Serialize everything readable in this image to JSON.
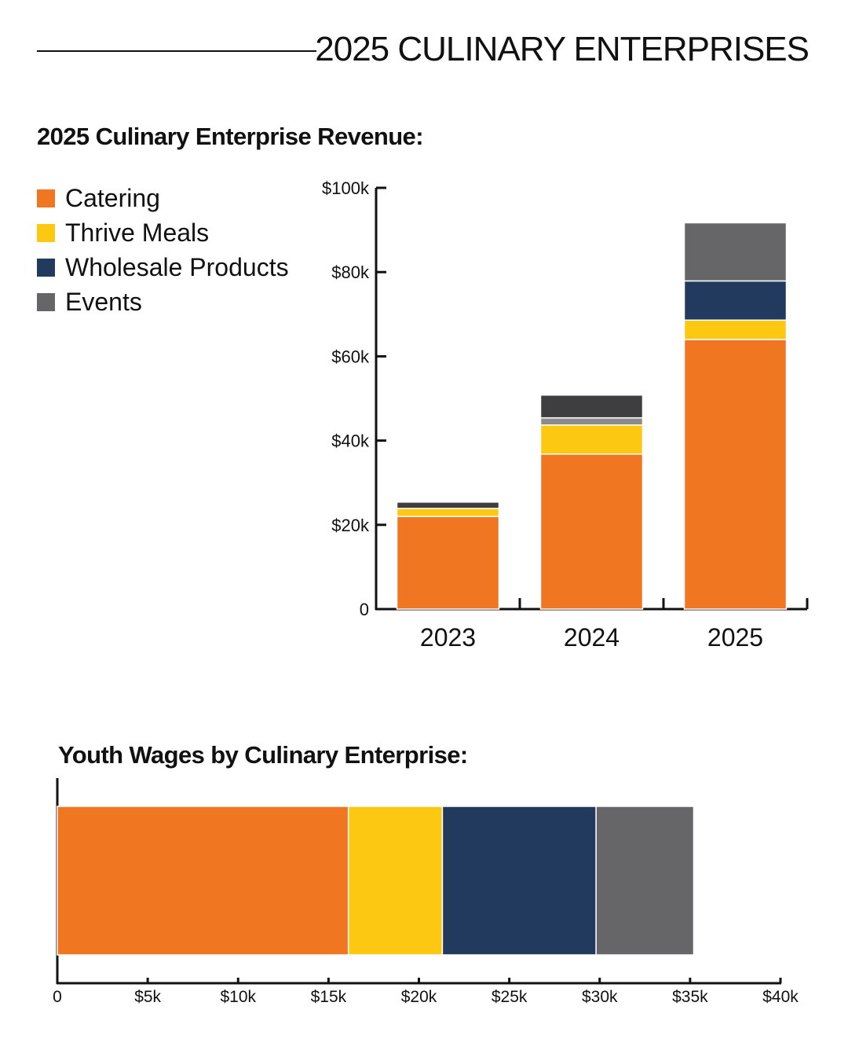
{
  "header": {
    "title": "2025 CULINARY ENTERPRISES"
  },
  "colors": {
    "catering": "#f07622",
    "thrive_meals": "#fcc811",
    "wholesale": "#223a5e",
    "events": "#666669",
    "other_dark": "#3e3e40",
    "other_gray": "#8c8c8e"
  },
  "legend": [
    {
      "label": "Catering",
      "color": "#f07622"
    },
    {
      "label": "Thrive Meals",
      "color": "#fcc811"
    },
    {
      "label": "Wholesale Products",
      "color": "#223a5e"
    },
    {
      "label": "Events",
      "color": "#666669"
    }
  ],
  "chart_data": [
    {
      "type": "bar",
      "stacked": true,
      "title": "2025 Culinary Enterprise Revenue:",
      "categories": [
        "2023",
        "2024",
        "2025"
      ],
      "y_ticks": [
        "0",
        "$20k",
        "$40k",
        "$60k",
        "$80k",
        "$100k"
      ],
      "ylim": [
        0,
        100000
      ],
      "series": [
        {
          "name": "Catering",
          "color": "#f07622",
          "values": [
            22000,
            36800,
            64000
          ]
        },
        {
          "name": "Thrive Meals",
          "color": "#fcc811",
          "values": [
            1900,
            6900,
            4600
          ]
        },
        {
          "name": "Wholesale Products",
          "color": "#223a5e",
          "values": [
            0,
            0,
            9300
          ]
        },
        {
          "color": "#8c8c8e",
          "values": [
            0,
            1700,
            0
          ]
        },
        {
          "name": "Events",
          "color": "#3e3e40",
          "values": [
            1500,
            5400,
            0
          ]
        },
        {
          "name": "Events",
          "color": "#666669",
          "values": [
            0,
            0,
            13800
          ]
        }
      ],
      "legend_position": "top-left"
    },
    {
      "type": "bar",
      "orientation": "horizontal",
      "stacked": true,
      "title": "Youth Wages by Culinary Enterprise:",
      "x_ticks": [
        "0",
        "$5k",
        "$10k",
        "$15k",
        "$20k",
        "$25k",
        "$30k",
        "$35k",
        "$40k"
      ],
      "xlim": [
        0,
        40000
      ],
      "series": [
        {
          "name": "Catering",
          "color": "#f07622",
          "value": 16100
        },
        {
          "name": "Thrive Meals",
          "color": "#fcc811",
          "value": 5200
        },
        {
          "name": "Wholesale Products",
          "color": "#223a5e",
          "value": 8500
        },
        {
          "name": "Events",
          "color": "#666669",
          "value": 5400
        }
      ]
    }
  ]
}
